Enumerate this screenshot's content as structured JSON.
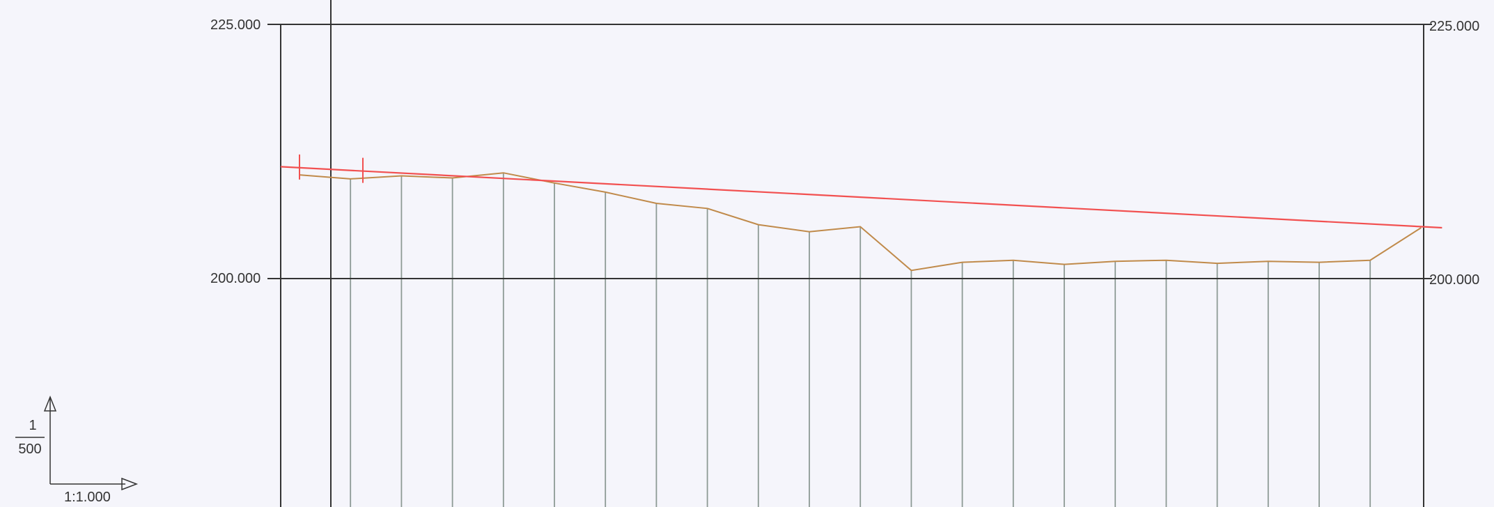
{
  "profile": {
    "y_axis_left": {
      "top_label": "225.000",
      "datum_label": "200.000"
    },
    "y_axis_right": {
      "top_label": "225.000",
      "datum_label": "200.000"
    },
    "elevations": {
      "top": 225,
      "datum": 200
    },
    "station_count": 23,
    "ground_line": {
      "color": "#c08a4a",
      "values": [
        210.2,
        209.8,
        210.1,
        209.9,
        210.4,
        209.4,
        208.5,
        207.4,
        206.9,
        205.3,
        204.6,
        205.1,
        200.8,
        201.6,
        201.8,
        201.4,
        201.7,
        201.8,
        201.5,
        201.7,
        201.6,
        201.8,
        205.0
      ]
    },
    "design_line": {
      "color": "#f25050",
      "start_value": 211.0,
      "end_value": 205.0,
      "ticks": [
        "begin",
        "pc"
      ]
    },
    "gridline_color": "#8d9a95",
    "scale_legend": {
      "vertical_numerator": "1",
      "vertical_denominator": "500",
      "horizontal_label": "1:1.000"
    }
  }
}
